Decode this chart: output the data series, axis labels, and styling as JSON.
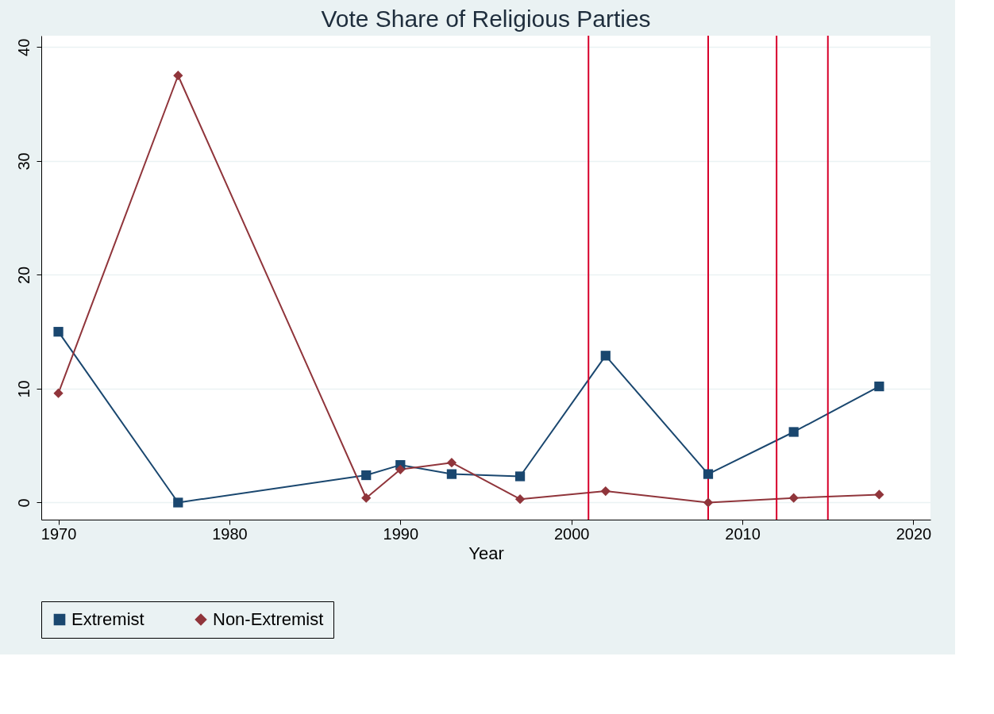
{
  "chart_data": {
    "type": "line",
    "title": "Vote Share of Religious Parties",
    "xlabel": "Year",
    "x": [
      1970,
      1977,
      1988,
      1990,
      1993,
      1997,
      2002,
      2008,
      2013,
      2018
    ],
    "series": [
      {
        "name": "Extremist",
        "color": "#1a476f",
        "marker": "square",
        "values": [
          15.0,
          0,
          2.4,
          3.3,
          2.5,
          2.3,
          12.9,
          2.5,
          6.2,
          10.2
        ]
      },
      {
        "name": "Non-Extremist",
        "color": "#90353b",
        "marker": "diamond",
        "values": [
          9.6,
          37.5,
          0.4,
          2.9,
          3.5,
          0.3,
          1.0,
          0,
          0.4,
          0.7
        ]
      }
    ],
    "xlim": [
      1969,
      2021
    ],
    "xticks": [
      1970,
      1980,
      1990,
      2000,
      2010,
      2020
    ],
    "ylim": [
      -1.5,
      41
    ],
    "yticks": [
      0,
      10,
      20,
      30,
      40
    ],
    "ref_lines": [
      {
        "axis": "x",
        "value": 2001,
        "color": "#d7002a"
      },
      {
        "axis": "x",
        "value": 2008,
        "color": "#d7002a"
      },
      {
        "axis": "x",
        "value": 2012,
        "color": "#d7002a"
      },
      {
        "axis": "x",
        "value": 2015,
        "color": "#d7002a"
      }
    ],
    "grid": "y",
    "legend": "bottom",
    "line_style": "solid"
  }
}
